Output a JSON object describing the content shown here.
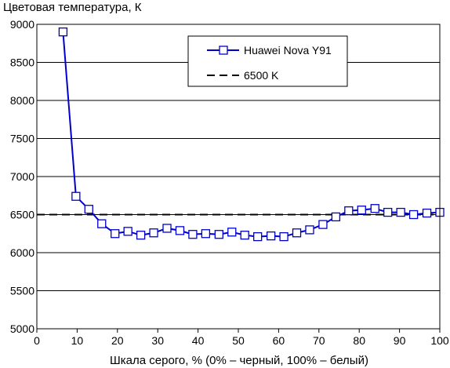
{
  "chart_data": {
    "type": "line",
    "title": "",
    "ylabel": "Цветовая температура, К",
    "xlabel": "Шкала серого, % (0% – черный, 100% – белый)",
    "xlim": [
      0,
      100
    ],
    "ylim": [
      5000,
      9000
    ],
    "xticks": [
      0,
      10,
      20,
      30,
      40,
      50,
      60,
      70,
      80,
      90,
      100
    ],
    "yticks": [
      5000,
      5500,
      6000,
      6500,
      7000,
      7500,
      8000,
      8500,
      9000
    ],
    "grid": "horizontal",
    "legend_position": "top-right",
    "series": [
      {
        "name": "Huawei Nova Y91",
        "color": "#0000cc",
        "marker": "square",
        "x": [
          6.5,
          9.7,
          12.9,
          16.1,
          19.4,
          22.6,
          25.8,
          29.0,
          32.3,
          35.5,
          38.7,
          41.9,
          45.2,
          48.4,
          51.6,
          54.8,
          58.1,
          61.3,
          64.5,
          67.7,
          71.0,
          74.2,
          77.4,
          80.6,
          83.9,
          87.1,
          90.3,
          93.5,
          96.8,
          100
        ],
        "values": [
          8900,
          6740,
          6570,
          6380,
          6250,
          6280,
          6230,
          6260,
          6320,
          6290,
          6240,
          6250,
          6240,
          6270,
          6230,
          6210,
          6220,
          6210,
          6260,
          6300,
          6370,
          6470,
          6550,
          6560,
          6580,
          6530,
          6530,
          6500,
          6520,
          6530
        ]
      },
      {
        "name": "6500 K",
        "color": "#000000",
        "style": "dashed",
        "x": [
          0,
          100
        ],
        "values": [
          6500,
          6500
        ]
      }
    ]
  }
}
